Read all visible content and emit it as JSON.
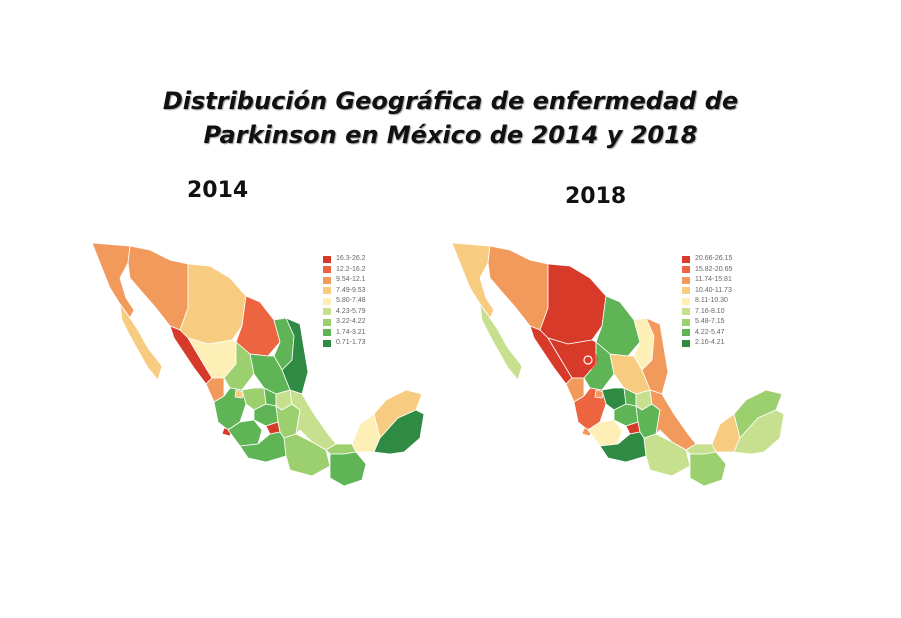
{
  "title": {
    "line1": "Distribución Geográfica de enfermedad de",
    "line2": "Parkinson en México de 2014  y 2018"
  },
  "maps": [
    {
      "year": "2014",
      "legend": [
        {
          "label": "16.3-26.2",
          "color": "#d83a2a"
        },
        {
          "label": "12.2-16.2",
          "color": "#ec6440"
        },
        {
          "label": "9.54-12.1",
          "color": "#f29a5c"
        },
        {
          "label": "7.49-9.53",
          "color": "#f7cc80"
        },
        {
          "label": "5.80-7.48",
          "color": "#fdefb6"
        },
        {
          "label": "4.23-5.79",
          "color": "#c7e08f"
        },
        {
          "label": "3.22-4.22",
          "color": "#9ccf6e"
        },
        {
          "label": "1.74-3.21",
          "color": "#5fb556"
        },
        {
          "label": "0.71-1.73",
          "color": "#2f8a43"
        }
      ]
    },
    {
      "year": "2018",
      "legend": [
        {
          "label": "20.66-26.15",
          "color": "#d83a2a"
        },
        {
          "label": "15.82-20.65",
          "color": "#ec6440"
        },
        {
          "label": "11.74-15.81",
          "color": "#f29a5c"
        },
        {
          "label": "10.40-11.73",
          "color": "#f7cc80"
        },
        {
          "label": "8.11-10.30",
          "color": "#fdefb6"
        },
        {
          "label": "7.16-8.10",
          "color": "#c7e08f"
        },
        {
          "label": "5.48-7.15",
          "color": "#9ccf6e"
        },
        {
          "label": "4.22-5.47",
          "color": "#5fb556"
        },
        {
          "label": "2.16-4.21",
          "color": "#2f8a43"
        }
      ]
    }
  ]
}
